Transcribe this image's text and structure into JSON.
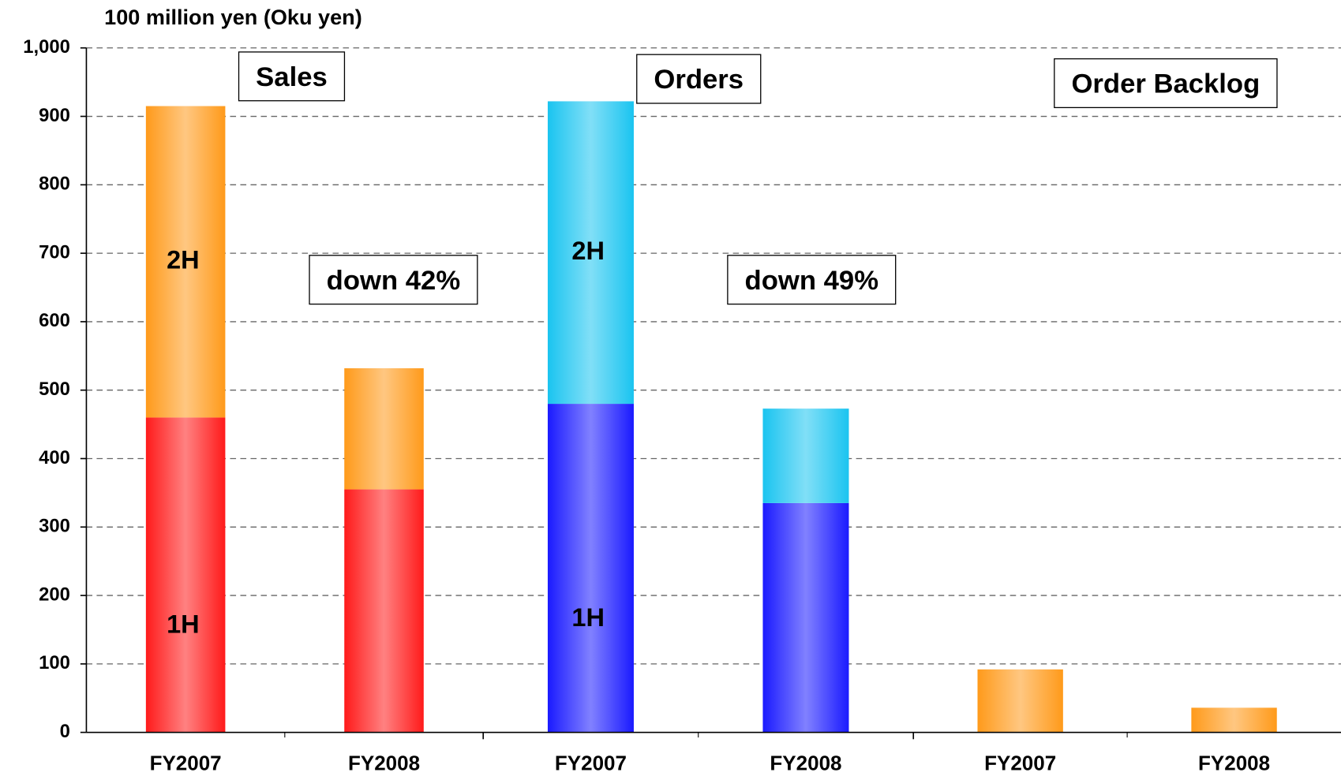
{
  "chart_data": {
    "type": "stacked_bar",
    "y_label": "100 million yen (Oku yen)",
    "ylim": [
      0,
      1000
    ],
    "yticks": [
      0,
      100,
      200,
      300,
      400,
      500,
      600,
      700,
      800,
      900,
      {
        "value": 1000,
        "label": "1,000"
      }
    ],
    "grid": true,
    "groups": [
      {
        "title": "Sales",
        "annotation": "down 42%",
        "categories": [
          "FY2007",
          "FY2008"
        ],
        "series": [
          {
            "name": "1H",
            "color": "#ff1a1a",
            "values": [
              460,
              355
            ]
          },
          {
            "name": "2H",
            "color": "#ff9a1a",
            "values": [
              455,
              177
            ]
          }
        ]
      },
      {
        "title": "Orders",
        "annotation": "down 49%",
        "categories": [
          "FY2007",
          "FY2008"
        ],
        "series": [
          {
            "name": "1H",
            "color": "#1a1aff",
            "values": [
              480,
              335
            ]
          },
          {
            "name": "2H",
            "color": "#1ac4f0",
            "values": [
              442,
              138
            ]
          }
        ]
      },
      {
        "title": "Order Backlog",
        "categories": [
          "FY2007",
          "FY2008"
        ],
        "series": [
          {
            "color": "#ff9a1a",
            "values": [
              92,
              36
            ]
          }
        ]
      }
    ]
  }
}
